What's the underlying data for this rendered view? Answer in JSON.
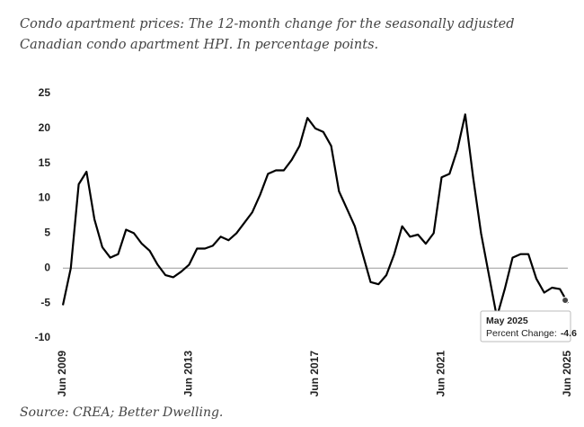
{
  "chart_data": {
    "type": "line",
    "title": "Condo apartment prices: The 12-month change for the seasonally adjusted Canadian condo apartment HPI. In percentage points.",
    "source": "Source: CREA; Better Dwelling.",
    "categories": [
      "Jun 2009",
      null,
      null,
      null,
      null,
      null,
      null,
      null,
      null,
      null,
      null,
      null,
      null,
      null,
      null,
      null,
      "Jun 2013",
      null,
      null,
      null,
      null,
      null,
      null,
      null,
      null,
      null,
      null,
      null,
      null,
      null,
      null,
      null,
      "Jun 2017",
      null,
      null,
      null,
      null,
      null,
      null,
      null,
      null,
      null,
      null,
      null,
      null,
      null,
      null,
      null,
      "Jun 2021",
      null,
      null,
      null,
      null,
      null,
      null,
      null,
      null,
      null,
      null,
      null,
      null,
      null,
      null,
      null,
      "Jun 2025"
    ],
    "series": [
      {
        "name": "Percent Change",
        "color": "#000000",
        "values": [
          -5.3,
          0,
          12,
          13.8,
          7,
          3,
          1.5,
          2,
          5.5,
          5,
          3.5,
          2.5,
          0.5,
          -1,
          -1.3,
          -0.5,
          0.5,
          2.8,
          2.8,
          3.2,
          4.5,
          4,
          5,
          6.5,
          8,
          10.5,
          13.5,
          14,
          14,
          15.5,
          17.5,
          21.5,
          20,
          19.5,
          17.5,
          11,
          8.5,
          6,
          2,
          -2,
          -2.3,
          -1,
          2,
          6,
          4.5,
          4.8,
          3.5,
          5,
          13,
          13.5,
          17,
          22,
          13,
          5,
          -1,
          -7,
          -3,
          1.5,
          2,
          2,
          -1.5,
          -3.5,
          -2.8,
          -3,
          -5
        ]
      }
    ],
    "ylim": [
      -10,
      25
    ],
    "yticks": [
      -10,
      -5,
      0,
      5,
      10,
      15,
      20,
      25
    ],
    "tooltip": {
      "title": "May 2025",
      "label": "Percent Change:",
      "value": -4.6
    }
  }
}
